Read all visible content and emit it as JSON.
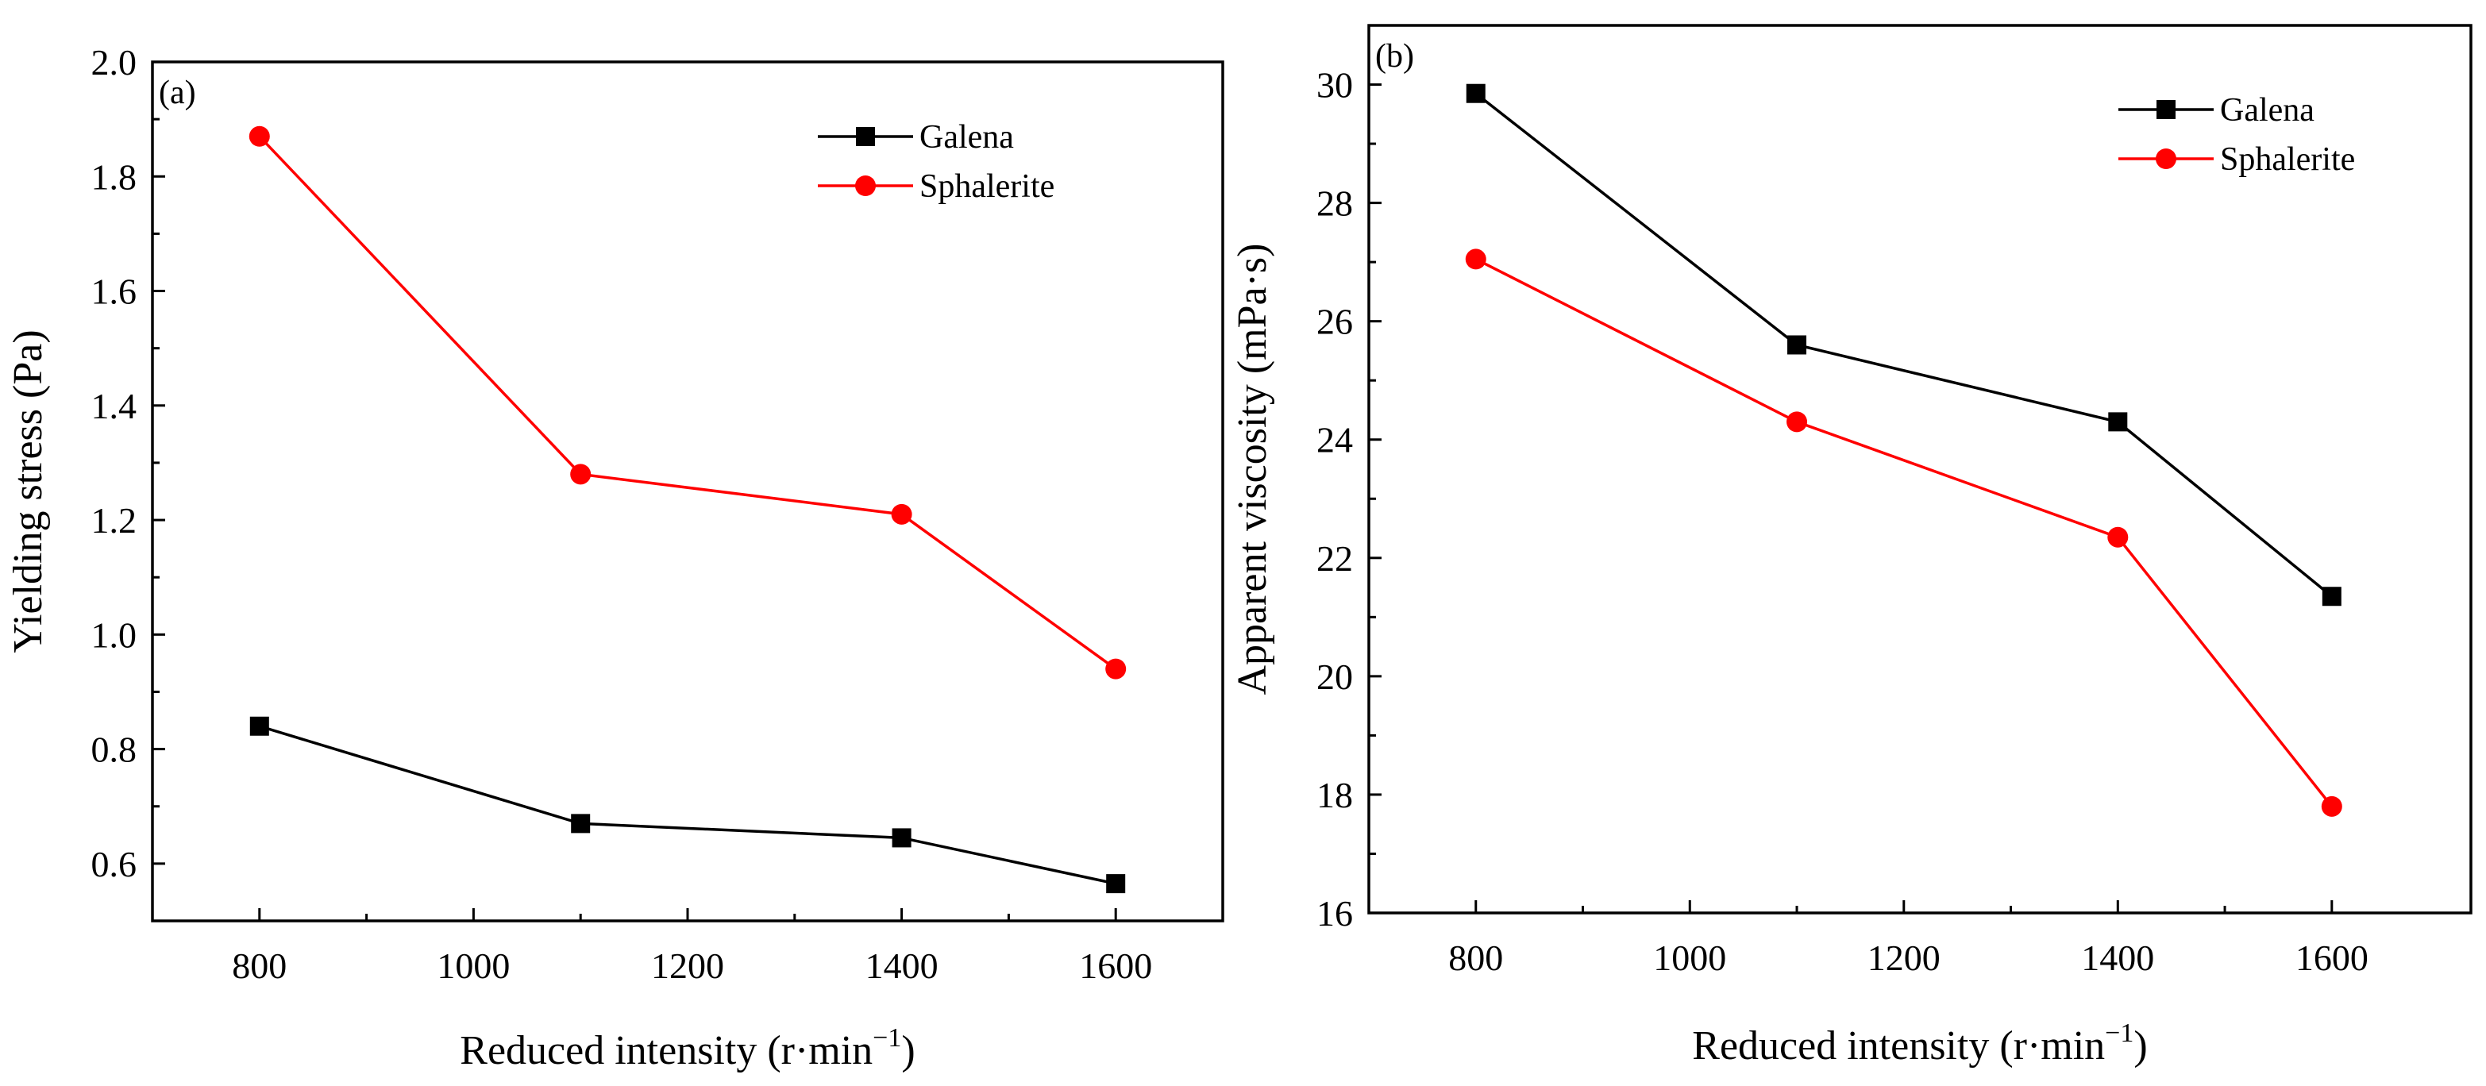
{
  "chart_data": [
    {
      "type": "line",
      "panel_label": "(a)",
      "xlabel": "Reduced intensity (r·min",
      "xlabel_sup": "−1",
      "xlabel_end": ")",
      "ylabel": "Yielding stress (Pa)",
      "x": [
        800,
        1100,
        1400,
        1600
      ],
      "xlim": [
        700,
        1700
      ],
      "ylim": [
        0.5,
        2.0
      ],
      "xticks": [
        800,
        1000,
        1200,
        1400,
        1600
      ],
      "xtick_labels": [
        "800",
        "1000",
        "1200",
        "1400",
        "1600"
      ],
      "yticks": [
        0.6,
        0.8,
        1.0,
        1.2,
        1.4,
        1.6,
        1.8,
        2.0
      ],
      "ytick_labels": [
        "0.6",
        "0.8",
        "1.0",
        "1.2",
        "1.4",
        "1.6",
        "1.8",
        "2.0"
      ],
      "grid": false,
      "legend_position": "top-right",
      "series": [
        {
          "name": "Galena",
          "color": "#000000",
          "marker": "square",
          "values": [
            0.84,
            0.67,
            0.645,
            0.565
          ]
        },
        {
          "name": "Sphalerite",
          "color": "#ff0000",
          "marker": "circle",
          "values": [
            1.87,
            1.28,
            1.21,
            0.94
          ]
        }
      ]
    },
    {
      "type": "line",
      "panel_label": "(b)",
      "xlabel": "Reduced intensity (r·min",
      "xlabel_sup": "−1",
      "xlabel_end": ")",
      "ylabel": "Apparent viscosity (mPa·s)",
      "x": [
        800,
        1100,
        1400,
        1600
      ],
      "xlim": [
        700,
        1730
      ],
      "ylim": [
        16,
        31
      ],
      "xticks": [
        800,
        1000,
        1200,
        1400,
        1600
      ],
      "xtick_labels": [
        "800",
        "1000",
        "1200",
        "1400",
        "1600"
      ],
      "yticks": [
        16,
        18,
        20,
        22,
        24,
        26,
        28,
        30
      ],
      "ytick_labels": [
        "16",
        "18",
        "20",
        "22",
        "24",
        "26",
        "28",
        "30"
      ],
      "grid": false,
      "legend_position": "top-right",
      "series": [
        {
          "name": "Galena",
          "color": "#000000",
          "marker": "square",
          "values": [
            29.85,
            25.6,
            24.3,
            21.35
          ]
        },
        {
          "name": "Sphalerite",
          "color": "#ff0000",
          "marker": "circle",
          "values": [
            27.05,
            24.3,
            22.35,
            17.8
          ]
        }
      ]
    }
  ]
}
